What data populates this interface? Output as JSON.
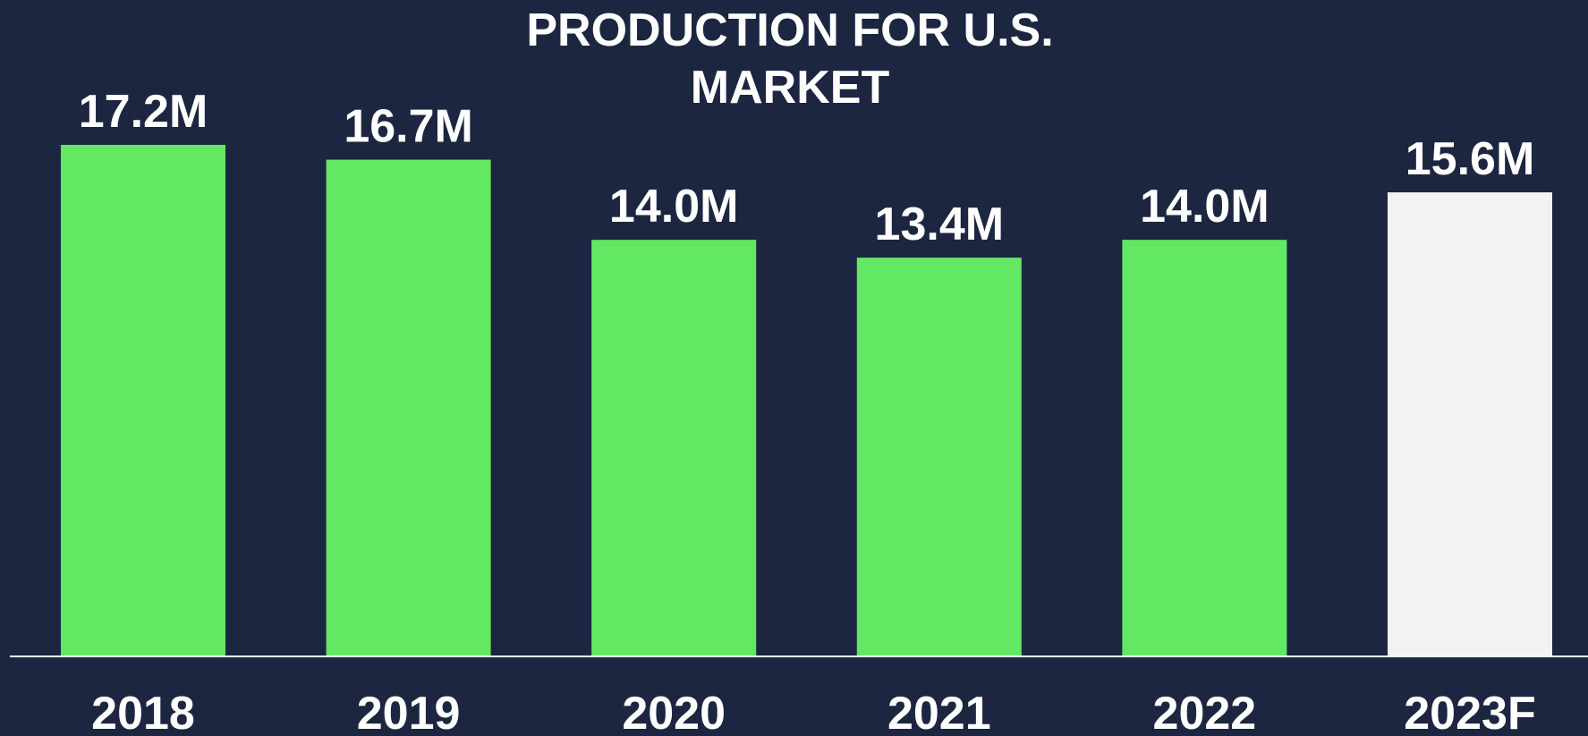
{
  "chart_data": {
    "type": "bar",
    "title": "PRODUCTION FOR U.S. MARKET",
    "categories": [
      "2018",
      "2019",
      "2020",
      "2021",
      "2022",
      "2023F"
    ],
    "values": [
      17.2,
      16.7,
      14.0,
      13.4,
      14.0,
      15.6
    ],
    "value_labels": [
      "17.2M",
      "16.7M",
      "14.0M",
      "13.4M",
      "14.0M",
      "15.6M"
    ],
    "colors": [
      "#62e862",
      "#62e862",
      "#62e862",
      "#62e862",
      "#62e862",
      "#f2f2f2"
    ]
  }
}
